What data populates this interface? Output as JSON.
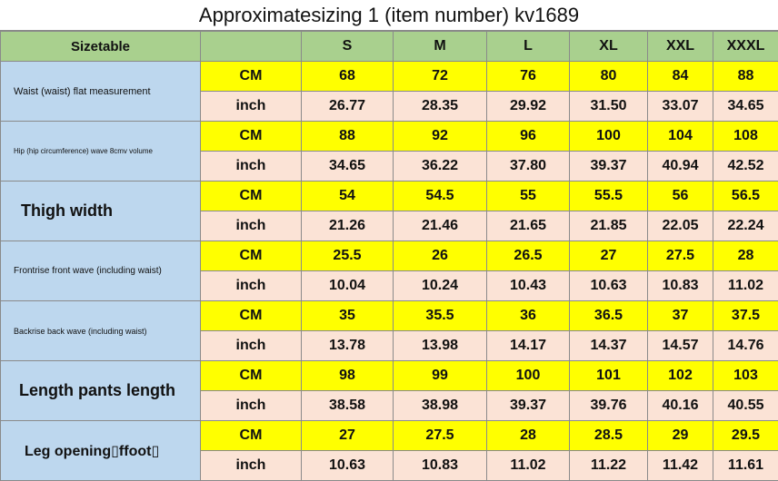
{
  "title": "Approximatesizing 1 (item number) kv1689",
  "header": {
    "label": "Sizetable",
    "sizes": [
      "S",
      "M",
      "L",
      "XL",
      "XXL",
      "XXXL"
    ]
  },
  "rows": [
    {
      "name": "Waist (waist) flat measurement",
      "cm_label": "CM",
      "inch_label": "inch",
      "cm": [
        "68",
        "72",
        "76",
        "80",
        "84",
        "88"
      ],
      "inch": [
        "26.77",
        "28.35",
        "29.92",
        "31.50",
        "33.07",
        "34.65"
      ]
    },
    {
      "name": "Hip (hip circumference) wave 8cmv volume",
      "cm_label": "CM",
      "inch_label": "inch",
      "cm": [
        "88",
        "92",
        "96",
        "100",
        "104",
        "108"
      ],
      "inch": [
        "34.65",
        "36.22",
        "37.80",
        "39.37",
        "40.94",
        "42.52"
      ]
    },
    {
      "name": "Thigh width",
      "cm_label": "CM",
      "inch_label": "inch",
      "cm": [
        "54",
        "54.5",
        "55",
        "55.5",
        "56",
        "56.5"
      ],
      "inch": [
        "21.26",
        "21.46",
        "21.65",
        "21.85",
        "22.05",
        "22.24"
      ]
    },
    {
      "name": "Frontrise front wave (including waist)",
      "cm_label": "CM",
      "inch_label": "inch",
      "cm": [
        "25.5",
        "26",
        "26.5",
        "27",
        "27.5",
        "28"
      ],
      "inch": [
        "10.04",
        "10.24",
        "10.43",
        "10.63",
        "10.83",
        "11.02"
      ]
    },
    {
      "name": "Backrise back wave (including waist)",
      "cm_label": "CM",
      "inch_label": "inch",
      "cm": [
        "35",
        "35.5",
        "36",
        "36.5",
        "37",
        "37.5"
      ],
      "inch": [
        "13.78",
        "13.98",
        "14.17",
        "14.37",
        "14.57",
        "14.76"
      ]
    },
    {
      "name": "Length pants length",
      "cm_label": "CM",
      "inch_label": "inch",
      "cm": [
        "98",
        "99",
        "100",
        "101",
        "102",
        "103"
      ],
      "inch": [
        "38.58",
        "38.98",
        "39.37",
        "39.76",
        "40.16",
        "40.55"
      ]
    },
    {
      "name": "Leg opening▯ffoot▯",
      "cm_label": "CM",
      "inch_label": "inch",
      "cm": [
        "27",
        "27.5",
        "28",
        "28.5",
        "29",
        "29.5"
      ],
      "inch": [
        "10.63",
        "10.83",
        "11.02",
        "11.22",
        "11.42",
        "11.61"
      ]
    }
  ],
  "colors": {
    "header": "#a9d08e",
    "name": "#bdd7ee",
    "cm": "#ffff00",
    "inch": "#fbe3d6"
  }
}
